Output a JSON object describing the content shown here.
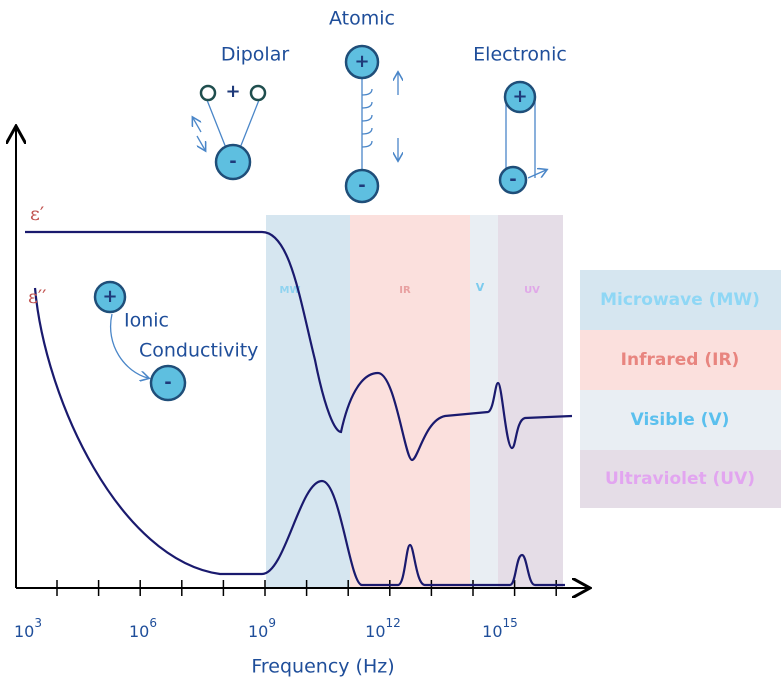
{
  "mechanisms": {
    "dipolar": "Dipolar",
    "atomic": "Atomic",
    "electronic": "Electronic",
    "ionic_line1": "Ionic",
    "ionic_line2": "Conductivity"
  },
  "charges": {
    "plus": "+",
    "minus": "-"
  },
  "curves": {
    "real": "ε′",
    "imaginary": "ε′′"
  },
  "bands": [
    "MW",
    "IR",
    "V",
    "UV"
  ],
  "legend": [
    "Microwave (MW)",
    "Infrared (IR)",
    "Visible (V)",
    "Ultraviolet (UV)"
  ],
  "x_axis": {
    "label": "Frequency (Hz)",
    "ticks": [
      {
        "base": "10",
        "exponent": "3"
      },
      {
        "base": "10",
        "exponent": "6"
      },
      {
        "base": "10",
        "exponent": "9"
      },
      {
        "base": "10",
        "exponent": "12"
      },
      {
        "base": "10",
        "exponent": "15"
      }
    ]
  }
}
